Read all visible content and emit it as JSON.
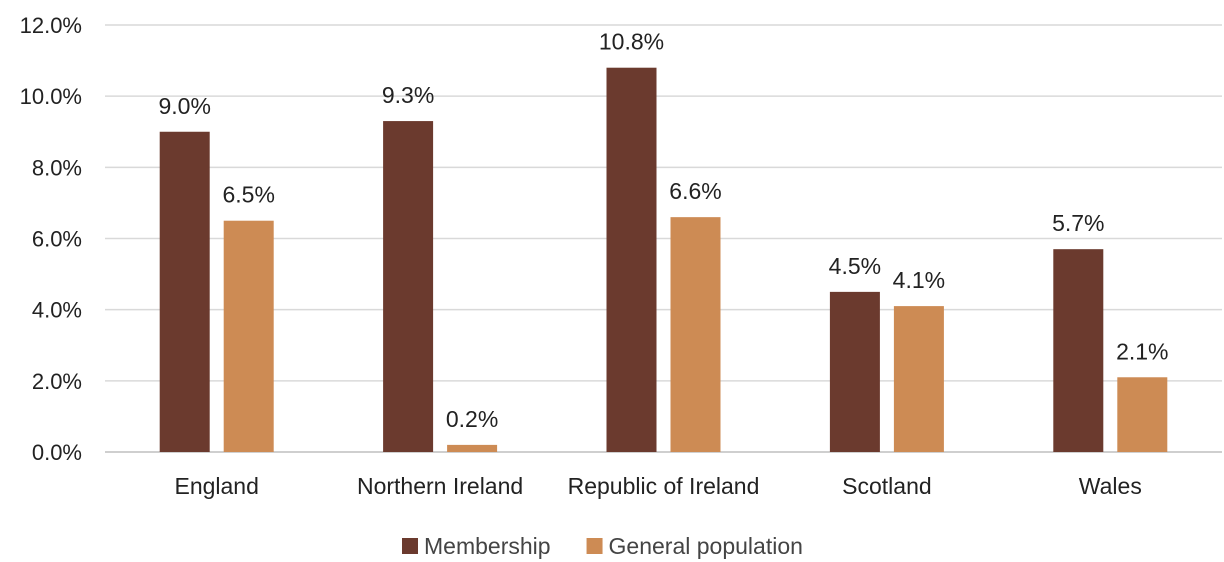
{
  "chart_data": {
    "type": "bar",
    "categories": [
      "England",
      "Northern Ireland",
      "Republic of Ireland",
      "Scotland",
      "Wales"
    ],
    "series": [
      {
        "name": "Membership",
        "values": [
          9.0,
          9.3,
          10.8,
          4.5,
          5.7
        ],
        "labels": [
          "9.0%",
          "9.3%",
          "10.8%",
          "4.5%",
          "5.7%"
        ],
        "color": "#6b3a2e"
      },
      {
        "name": "General population",
        "values": [
          6.5,
          0.2,
          6.6,
          4.1,
          2.1
        ],
        "labels": [
          "6.5%",
          "0.2%",
          "6.6%",
          "4.1%",
          "2.1%"
        ],
        "color": "#cd8b54"
      }
    ],
    "ylim": [
      0,
      12
    ],
    "yticks": [
      0,
      2,
      4,
      6,
      8,
      10,
      12
    ],
    "ytick_labels": [
      "0.0%",
      "2.0%",
      "4.0%",
      "6.0%",
      "8.0%",
      "10.0%",
      "12.0%"
    ],
    "grid": true,
    "legend": "bottom",
    "title": "",
    "xlabel": "",
    "ylabel": ""
  }
}
